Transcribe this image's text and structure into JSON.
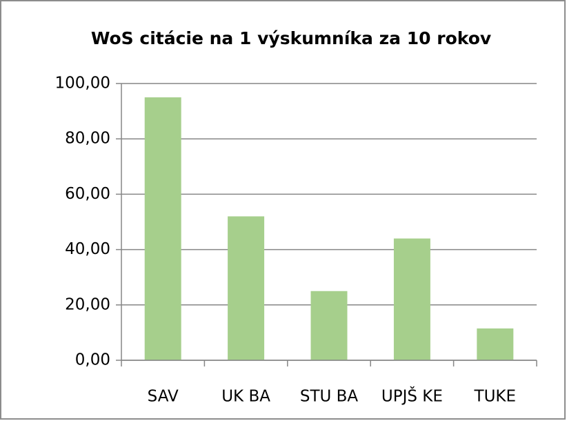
{
  "chart_data": {
    "type": "bar",
    "title": "WoS citácie na 1 výskumníka za 10 rokov",
    "categories": [
      "SAV",
      "UK BA",
      "STU BA",
      "UPJŠ KE",
      "TUKE"
    ],
    "values": [
      95,
      52,
      25,
      44,
      11.5
    ],
    "color": "#a6cf8c",
    "ylim": [
      0,
      100
    ],
    "yticks": [
      {
        "value": 0,
        "label": "0,00"
      },
      {
        "value": 20,
        "label": "20,00"
      },
      {
        "value": 40,
        "label": "40,00"
      },
      {
        "value": 60,
        "label": "60,00"
      },
      {
        "value": 80,
        "label": "80,00"
      },
      {
        "value": 100,
        "label": "100,00"
      }
    ],
    "grid": true
  }
}
